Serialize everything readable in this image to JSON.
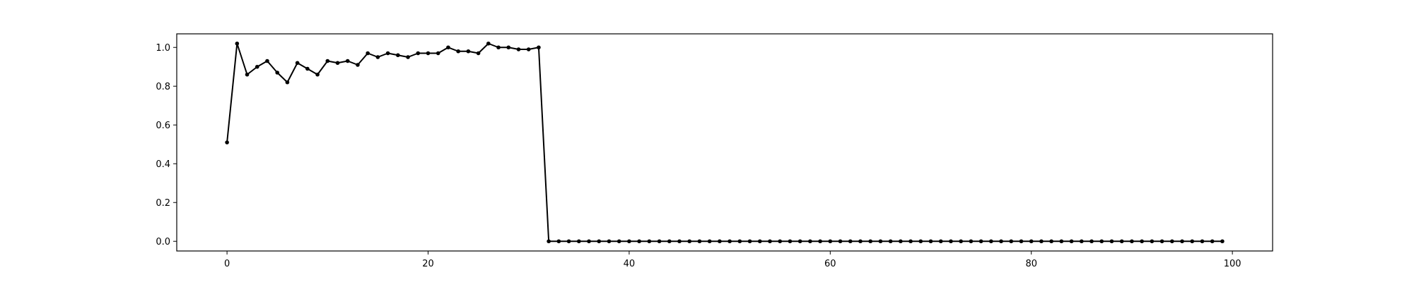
{
  "chart_data": {
    "type": "line",
    "title": "",
    "xlabel": "",
    "ylabel": "",
    "xlim": [
      -5,
      104
    ],
    "ylim": [
      -0.05,
      1.07
    ],
    "x_ticks": [
      0,
      20,
      40,
      60,
      80,
      100
    ],
    "x_tick_labels": [
      "0",
      "20",
      "40",
      "60",
      "80",
      "100"
    ],
    "y_ticks": [
      0.0,
      0.2,
      0.4,
      0.6,
      0.8,
      1.0
    ],
    "y_tick_labels": [
      "0.0",
      "0.2",
      "0.4",
      "0.6",
      "0.8",
      "1.0"
    ],
    "grid": false,
    "legend": "none",
    "series": [
      {
        "color": "#000000",
        "marker": "dot",
        "x": [
          0,
          1,
          2,
          3,
          4,
          5,
          6,
          7,
          8,
          9,
          10,
          11,
          12,
          13,
          14,
          15,
          16,
          17,
          18,
          19,
          20,
          21,
          22,
          23,
          24,
          25,
          26,
          27,
          28,
          29,
          30,
          31,
          32,
          33,
          34,
          35,
          36,
          37,
          38,
          39,
          40,
          41,
          42,
          43,
          44,
          45,
          46,
          47,
          48,
          49,
          50,
          51,
          52,
          53,
          54,
          55,
          56,
          57,
          58,
          59,
          60,
          61,
          62,
          63,
          64,
          65,
          66,
          67,
          68,
          69,
          70,
          71,
          72,
          73,
          74,
          75,
          76,
          77,
          78,
          79,
          80,
          81,
          82,
          83,
          84,
          85,
          86,
          87,
          88,
          89,
          90,
          91,
          92,
          93,
          94,
          95,
          96,
          97,
          98,
          99
        ],
        "values": [
          0.51,
          1.02,
          0.86,
          0.9,
          0.93,
          0.87,
          0.82,
          0.92,
          0.89,
          0.86,
          0.93,
          0.92,
          0.93,
          0.91,
          0.97,
          0.95,
          0.97,
          0.96,
          0.95,
          0.97,
          0.97,
          0.97,
          1.0,
          0.98,
          0.98,
          0.97,
          1.02,
          1.0,
          1.0,
          0.99,
          0.99,
          1.0,
          0,
          0,
          0,
          0,
          0,
          0,
          0,
          0,
          0,
          0,
          0,
          0,
          0,
          0,
          0,
          0,
          0,
          0,
          0,
          0,
          0,
          0,
          0,
          0,
          0,
          0,
          0,
          0,
          0,
          0,
          0,
          0,
          0,
          0,
          0,
          0,
          0,
          0,
          0,
          0,
          0,
          0,
          0,
          0,
          0,
          0,
          0,
          0,
          0,
          0,
          0,
          0,
          0,
          0,
          0,
          0,
          0,
          0,
          0,
          0,
          0,
          0,
          0,
          0,
          0,
          0,
          0,
          0
        ]
      }
    ]
  }
}
